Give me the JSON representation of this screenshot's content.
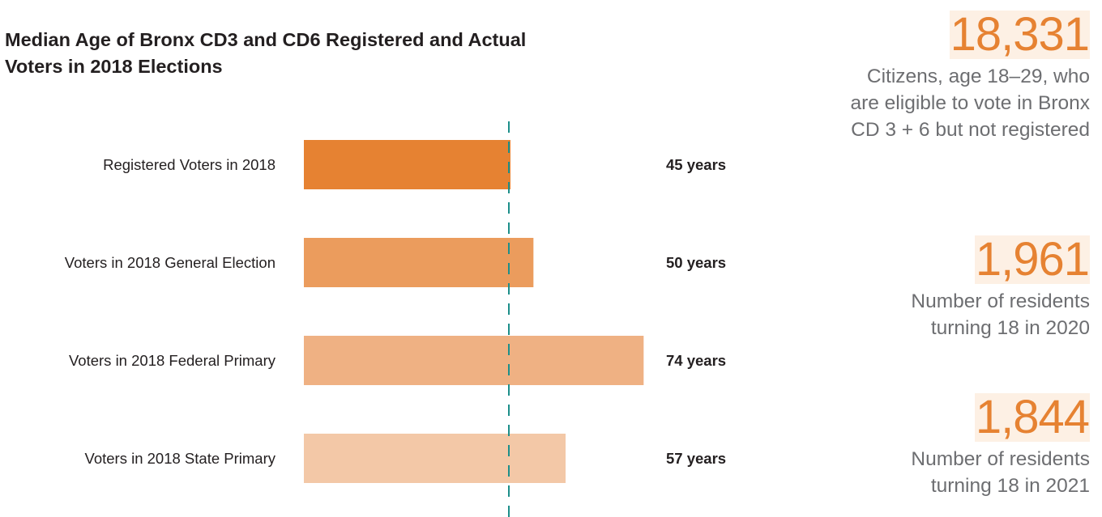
{
  "chart_data": {
    "type": "bar",
    "orientation": "horizontal",
    "title": "Median Age of Bronx CD3 and CD6 Registered and Actual Voters in 2018 Elections",
    "categories": [
      "Registered Voters in 2018",
      "Voters in 2018 General Election",
      "Voters in 2018 Federal Primary",
      "Voters in 2018 State Primary"
    ],
    "values": [
      45,
      50,
      74,
      57
    ],
    "value_labels": [
      "45 years",
      "50 years",
      "74 years",
      "57 years"
    ],
    "unit": "years",
    "reference_line": {
      "value": 45,
      "style": "dashed"
    },
    "xlim": [
      0,
      80
    ],
    "grid": false,
    "bar_colors": [
      "#e68232",
      "#eb9c5d",
      "#efb183",
      "#f3c8a7"
    ],
    "reference_line_color": "#1c8f8a"
  },
  "stats": [
    {
      "number": "18,331",
      "description": "Citizens, age 18–29, who are eligible to vote in Bronx CD 3 + 6 but not registered"
    },
    {
      "number": "1,961",
      "description": "Number of residents turning 18 in 2020"
    },
    {
      "number": "1,844",
      "description": "Number of residents turning 18 in 2021"
    }
  ],
  "colors": {
    "stat_number": "#e68232",
    "stat_highlight": "#fdf0e4",
    "stat_text": "#6d6e71",
    "text": "#231f20"
  }
}
